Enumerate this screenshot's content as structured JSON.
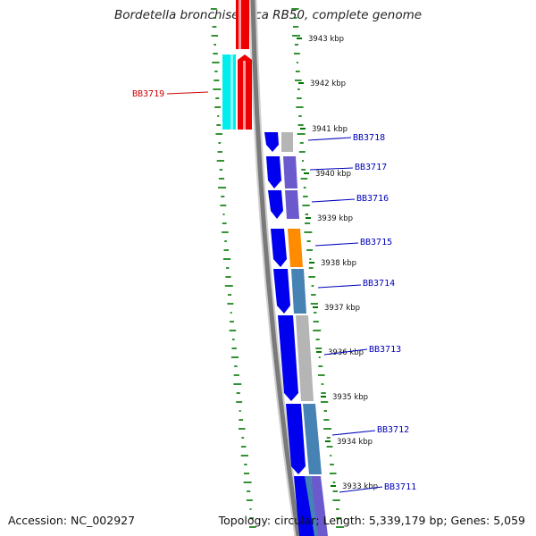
{
  "title": "Bordetella bronchiseptica RB50, complete genome",
  "footer": {
    "accession": "Accession: NC_002927",
    "topology": "Topology: circular; Length: 5,339,179 bp; Genes: 5,059"
  },
  "colors": {
    "forward_strand": "#0000ee",
    "reverse_strand_red": "#ee0000",
    "cyan": "#00eeee",
    "gray": "#b0b0b0",
    "purple": "#6a5acd",
    "orange": "#ff8c00",
    "steelblue": "#4682b4",
    "gc_tick": "#007700",
    "label_forward": "#0000bb",
    "label_reverse": "#cc0000"
  },
  "kbp_labels": [
    {
      "text": "3943 kbp"
    },
    {
      "text": "3942 kbp"
    },
    {
      "text": "3941 kbp"
    },
    {
      "text": "3940 kbp"
    },
    {
      "text": "3939 kbp"
    },
    {
      "text": "3938 kbp"
    },
    {
      "text": "3937 kbp"
    },
    {
      "text": "3936 kbp"
    },
    {
      "text": "3935 kbp"
    },
    {
      "text": "3934 kbp"
    },
    {
      "text": "3933 kbp"
    }
  ],
  "gene_labels": [
    {
      "text": "BB3719",
      "strand": "reverse"
    },
    {
      "text": "BB3718",
      "strand": "forward"
    },
    {
      "text": "BB3717",
      "strand": "forward"
    },
    {
      "text": "BB3716",
      "strand": "forward"
    },
    {
      "text": "BB3715",
      "strand": "forward"
    },
    {
      "text": "BB3714",
      "strand": "forward"
    },
    {
      "text": "BB3713",
      "strand": "forward"
    },
    {
      "text": "BB3712",
      "strand": "forward"
    },
    {
      "text": "BB3711",
      "strand": "forward"
    }
  ]
}
